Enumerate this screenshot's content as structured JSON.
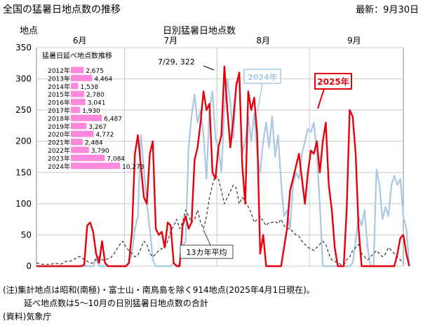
{
  "header": {
    "title": "全国の猛暑日地点数の推移",
    "updated": "最新：9月30日"
  },
  "footer": {
    "note_line1": "(注)集計地点は昭和(南極)・富士山・南鳥島を除く914地点(2025年4月1日現在)。",
    "note_line2": "延べ地点数は5～10月の日別猛暑日地点数の合計",
    "source": "(資料)気象庁"
  },
  "chart_data": {
    "type": "line",
    "title": "日別猛暑日地点数",
    "ylabel": "地点",
    "ylim": [
      0,
      350
    ],
    "y_ticks": [
      0,
      50,
      100,
      150,
      200,
      250,
      300,
      350
    ],
    "x_day_range": [
      1,
      124
    ],
    "month_labels": [
      {
        "label": "6月",
        "start_day": 1,
        "end_day": 30
      },
      {
        "label": "7月",
        "start_day": 31,
        "end_day": 61
      },
      {
        "label": "8月",
        "start_day": 62,
        "end_day": 92
      },
      {
        "label": "9月",
        "start_day": 93,
        "end_day": 122
      }
    ],
    "grid": true,
    "series": [
      {
        "name": "2025年",
        "color": "#e8000b",
        "style": "solid",
        "values": [
          0,
          0,
          0,
          0,
          0,
          0,
          0,
          0,
          0,
          0,
          0,
          0,
          0,
          0,
          0,
          0,
          2,
          65,
          70,
          55,
          20,
          5,
          40,
          5,
          0,
          0,
          0,
          0,
          0,
          0,
          0,
          5,
          55,
          180,
          210,
          160,
          110,
          100,
          180,
          200,
          60,
          50,
          55,
          30,
          70,
          65,
          5,
          0,
          0,
          65,
          80,
          60,
          70,
          170,
          190,
          230,
          280,
          250,
          260,
          150,
          140,
          190,
          210,
          320,
          250,
          190,
          235,
          290,
          310,
          160,
          100,
          280,
          250,
          270,
          210,
          20,
          50,
          0,
          0,
          0,
          0,
          0,
          0,
          30,
          60,
          120,
          140,
          160,
          180,
          140,
          100,
          150,
          185,
          180,
          200,
          150,
          200,
          230,
          130,
          90,
          30,
          0,
          0,
          0,
          90,
          250,
          240,
          180,
          60,
          0,
          0,
          0,
          0,
          0,
          0,
          0,
          0,
          0,
          0,
          0,
          0,
          20,
          45,
          50,
          20,
          0
        ]
      },
      {
        "name": "2024年",
        "color": "#a8c8e4",
        "style": "solid",
        "values": [
          0,
          0,
          0,
          0,
          0,
          0,
          0,
          0,
          0,
          0,
          0,
          0,
          0,
          0,
          0,
          0,
          0,
          0,
          0,
          0,
          12,
          0,
          0,
          0,
          0,
          0,
          0,
          0,
          0,
          0,
          0,
          5,
          20,
          60,
          80,
          210,
          155,
          100,
          60,
          10,
          0,
          0,
          0,
          0,
          0,
          0,
          5,
          0,
          5,
          30,
          40,
          190,
          240,
          275,
          230,
          250,
          210,
          140,
          250,
          280,
          205,
          190,
          150,
          255,
          300,
          260,
          205,
          295,
          295,
          180,
          200,
          240,
          200,
          245,
          180,
          150,
          200,
          230,
          190,
          240,
          175,
          210,
          135,
          80,
          90,
          60,
          130,
          150,
          140,
          180,
          200,
          220,
          215,
          230,
          180,
          100,
          0,
          0,
          0,
          0,
          0,
          0,
          0,
          0,
          0,
          0,
          5,
          40,
          80,
          65,
          90,
          30,
          0,
          0,
          155,
          130,
          75,
          95,
          80,
          130,
          145,
          130,
          140,
          80,
          60,
          0
        ]
      },
      {
        "name": "13カ年平均",
        "color": "#333333",
        "style": "dashed",
        "values": [
          5,
          4,
          3,
          3,
          3,
          3,
          5,
          4,
          3,
          5,
          8,
          7,
          10,
          12,
          15,
          15,
          10,
          8,
          5,
          5,
          12,
          15,
          10,
          10,
          12,
          14,
          20,
          28,
          35,
          40,
          30,
          25,
          20,
          15,
          18,
          28,
          40,
          35,
          20,
          15,
          20,
          25,
          28,
          30,
          40,
          55,
          65,
          75,
          60,
          70,
          90,
          80,
          70,
          75,
          90,
          70,
          60,
          80,
          110,
          130,
          145,
          140,
          120,
          100,
          110,
          120,
          130,
          125,
          100,
          110,
          105,
          95,
          85,
          70,
          75,
          80,
          72,
          65,
          70,
          70,
          72,
          68,
          75,
          65,
          60,
          60,
          55,
          50,
          48,
          40,
          35,
          30,
          28,
          25,
          30,
          35,
          40,
          35,
          20,
          10,
          8,
          5,
          3,
          2,
          10,
          15,
          25,
          30,
          35,
          20,
          15,
          10,
          15,
          20,
          25,
          20,
          15,
          20,
          30,
          25,
          20,
          15,
          10,
          5
        ]
      }
    ],
    "annotations": {
      "peak_label": "7/29, 322",
      "label_2024": "2024年",
      "label_2025": "2025年",
      "label_avg": "13カ年平均"
    },
    "inset": {
      "title": "猛暑日延べ地点数推移",
      "color": "#ff88dd",
      "max": 10273,
      "rows": [
        {
          "year": "2012年",
          "value": 2675,
          "value_label": "2,675"
        },
        {
          "year": "2013年",
          "value": 4464,
          "value_label": "4,464"
        },
        {
          "year": "2014年",
          "value": 1538,
          "value_label": "1,538"
        },
        {
          "year": "2015年",
          "value": 2780,
          "value_label": "2,780"
        },
        {
          "year": "2016年",
          "value": 3041,
          "value_label": "3,041"
        },
        {
          "year": "2017年",
          "value": 1930,
          "value_label": "1,930"
        },
        {
          "year": "2018年",
          "value": 6487,
          "value_label": "6,487"
        },
        {
          "year": "2019年",
          "value": 3267,
          "value_label": "3,267"
        },
        {
          "year": "2020年",
          "value": 4772,
          "value_label": "4,772"
        },
        {
          "year": "2021年",
          "value": 2484,
          "value_label": "2,484"
        },
        {
          "year": "2022年",
          "value": 3790,
          "value_label": "3,790"
        },
        {
          "year": "2023年",
          "value": 7084,
          "value_label": "7,084"
        },
        {
          "year": "2024年",
          "value": 10273,
          "value_label": "10,273"
        }
      ]
    }
  }
}
